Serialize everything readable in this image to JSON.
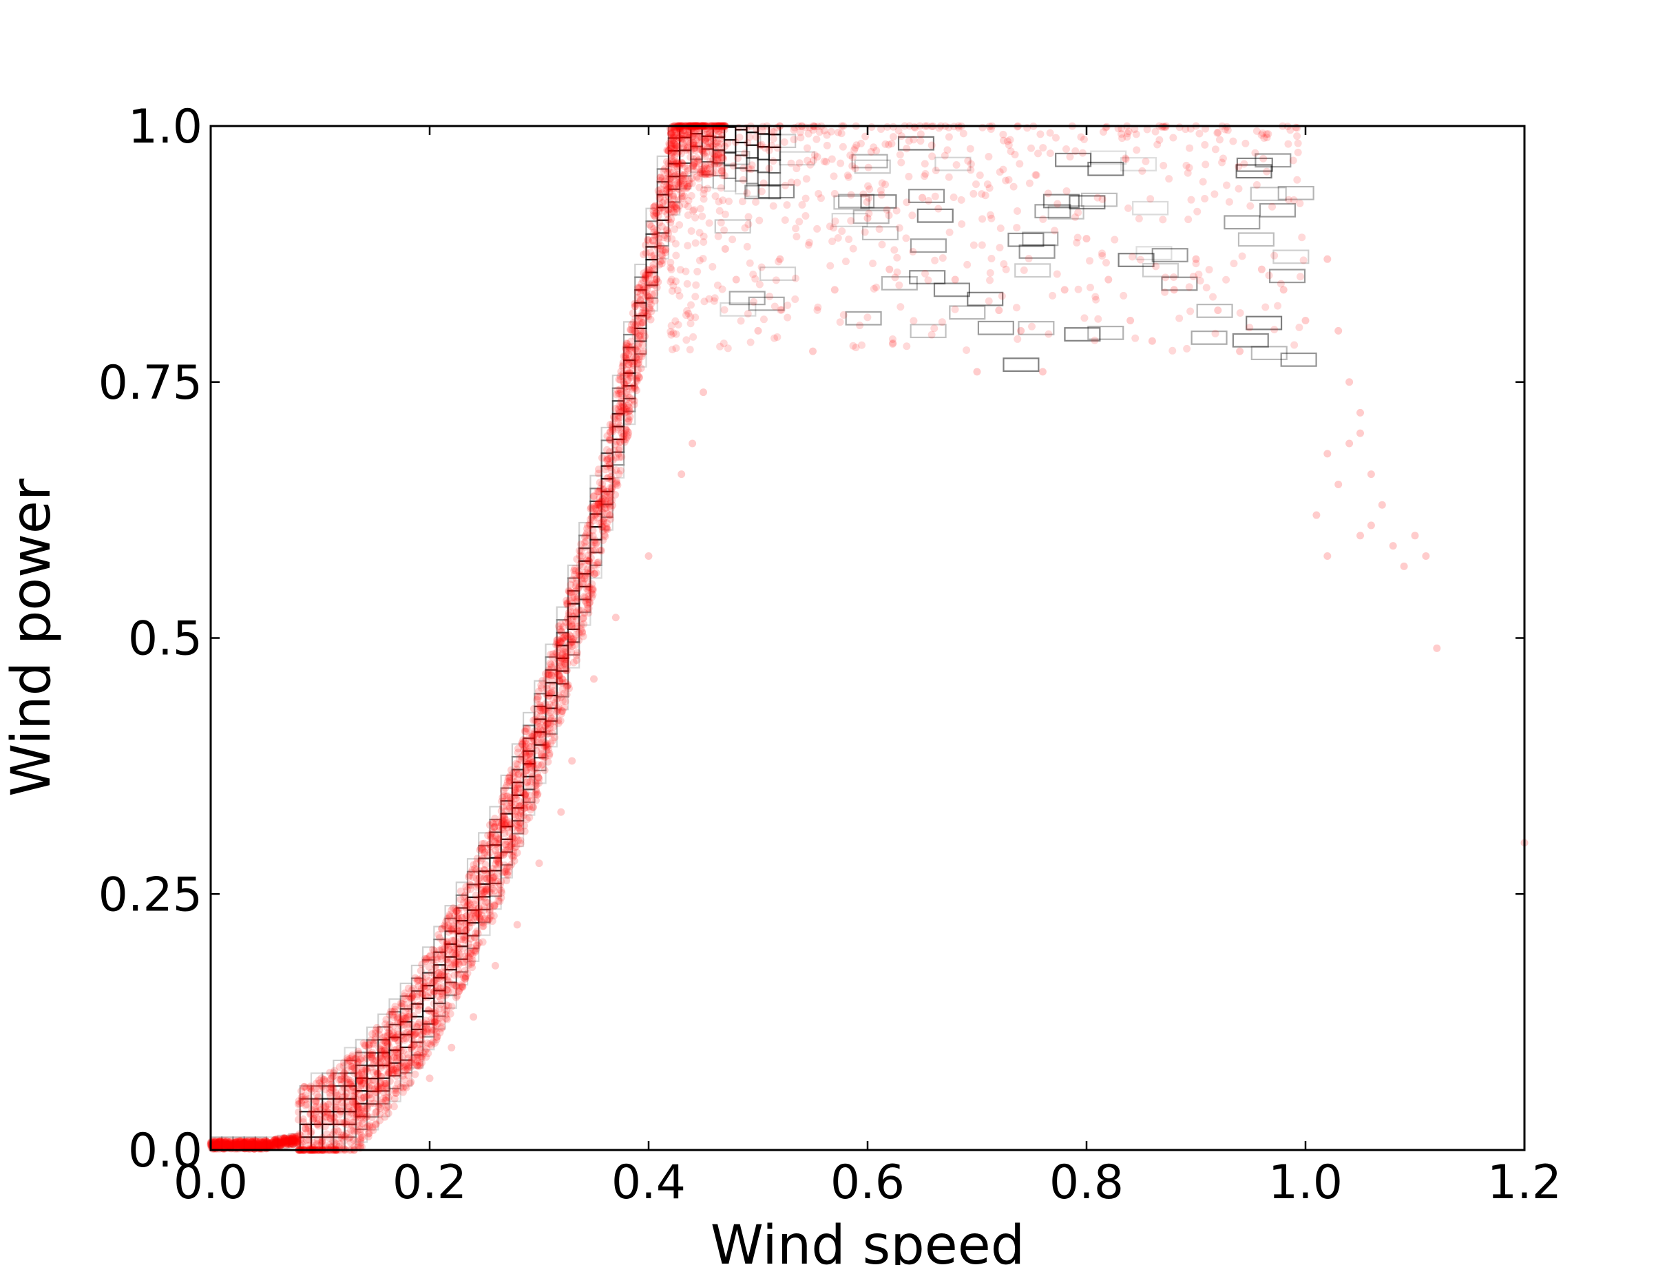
{
  "chart_data": {
    "type": "scatter",
    "xlabel": "Wind speed",
    "ylabel": "Wind power",
    "xlim": [
      0.0,
      1.2
    ],
    "ylim": [
      0.0,
      1.0
    ],
    "x_ticks": [
      "0.0",
      "0.2",
      "0.4",
      "0.6",
      "0.8",
      "1.0",
      "1.2"
    ],
    "y_ticks": [
      "0.0",
      "0.25",
      "0.5",
      "0.75",
      "1.0"
    ],
    "grid": false,
    "point_color": "#ff0000",
    "box_color": "#000000",
    "curve_points": [
      [
        0.0,
        0.005
      ],
      [
        0.05,
        0.005
      ],
      [
        0.08,
        0.01
      ],
      [
        0.1,
        0.02
      ],
      [
        0.12,
        0.035
      ],
      [
        0.14,
        0.055
      ],
      [
        0.16,
        0.08
      ],
      [
        0.18,
        0.11
      ],
      [
        0.2,
        0.145
      ],
      [
        0.22,
        0.185
      ],
      [
        0.24,
        0.23
      ],
      [
        0.26,
        0.28
      ],
      [
        0.28,
        0.34
      ],
      [
        0.3,
        0.4
      ],
      [
        0.32,
        0.47
      ],
      [
        0.34,
        0.55
      ],
      [
        0.36,
        0.64
      ],
      [
        0.38,
        0.74
      ],
      [
        0.4,
        0.85
      ],
      [
        0.42,
        0.95
      ],
      [
        0.44,
        1.0
      ],
      [
        0.46,
        1.0
      ],
      [
        0.5,
        0.99
      ],
      [
        0.6,
        0.985
      ],
      [
        0.7,
        0.98
      ],
      [
        0.8,
        0.975
      ],
      [
        0.9,
        0.97
      ]
    ],
    "outlier_points": [
      [
        0.47,
        0.88
      ],
      [
        0.48,
        0.85
      ],
      [
        0.5,
        0.8
      ],
      [
        0.52,
        0.87
      ],
      [
        0.55,
        0.78
      ],
      [
        0.57,
        0.84
      ],
      [
        0.6,
        0.91
      ],
      [
        0.62,
        0.86
      ],
      [
        0.65,
        0.93
      ],
      [
        0.68,
        0.85
      ],
      [
        0.7,
        0.76
      ],
      [
        0.72,
        0.82
      ],
      [
        0.74,
        0.8
      ],
      [
        0.76,
        0.76
      ],
      [
        0.78,
        0.84
      ],
      [
        0.8,
        0.89
      ],
      [
        0.82,
        0.85
      ],
      [
        0.84,
        0.81
      ],
      [
        0.86,
        0.79
      ],
      [
        0.88,
        0.84
      ],
      [
        0.9,
        0.87
      ],
      [
        0.92,
        0.82
      ],
      [
        0.94,
        0.78
      ],
      [
        0.96,
        0.86
      ],
      [
        0.98,
        0.84
      ],
      [
        1.0,
        0.81
      ],
      [
        1.02,
        0.87
      ],
      [
        1.03,
        0.8
      ],
      [
        1.04,
        0.75
      ],
      [
        1.05,
        0.72
      ],
      [
        1.05,
        0.7
      ],
      [
        1.04,
        0.69
      ],
      [
        1.06,
        0.66
      ],
      [
        1.03,
        0.65
      ],
      [
        1.07,
        0.63
      ],
      [
        1.06,
        0.61
      ],
      [
        1.05,
        0.6
      ],
      [
        1.08,
        0.59
      ],
      [
        1.1,
        0.6
      ],
      [
        1.11,
        0.58
      ],
      [
        1.09,
        0.57
      ],
      [
        1.02,
        0.58
      ],
      [
        1.12,
        0.49
      ],
      [
        1.2,
        0.3
      ],
      [
        1.02,
        0.68
      ],
      [
        1.01,
        0.62
      ],
      [
        0.45,
        0.74
      ],
      [
        0.44,
        0.69
      ],
      [
        0.43,
        0.66
      ],
      [
        0.4,
        0.58
      ],
      [
        0.37,
        0.52
      ],
      [
        0.35,
        0.46
      ],
      [
        0.33,
        0.38
      ],
      [
        0.32,
        0.33
      ],
      [
        0.3,
        0.28
      ],
      [
        0.28,
        0.22
      ],
      [
        0.26,
        0.18
      ],
      [
        0.24,
        0.13
      ],
      [
        0.22,
        0.1
      ],
      [
        0.2,
        0.07
      ]
    ]
  }
}
